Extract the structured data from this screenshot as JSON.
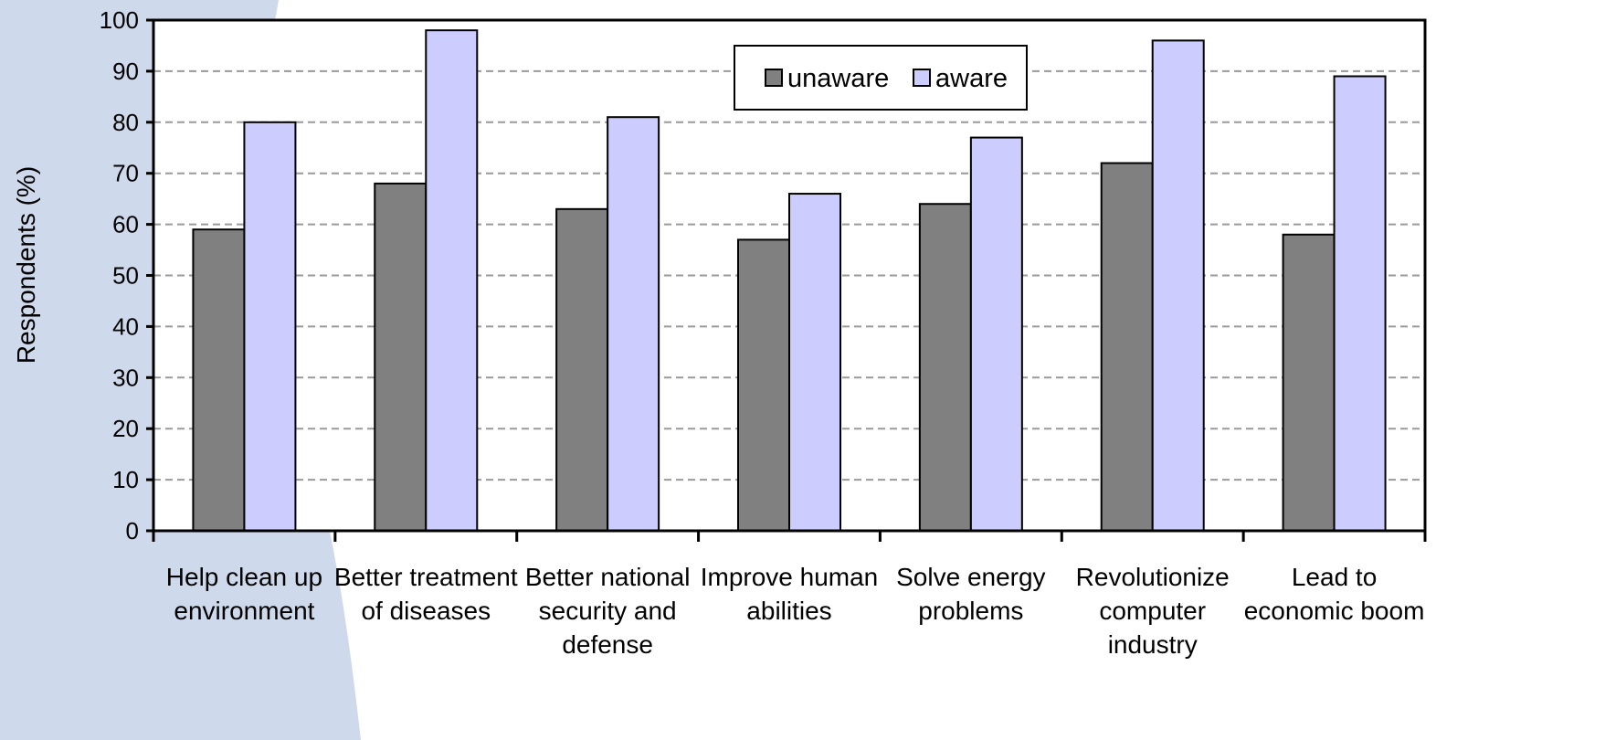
{
  "chart_data": {
    "type": "bar",
    "ylabel": "Respondents (%)",
    "ylim": [
      0,
      100
    ],
    "yticks": [
      0,
      10,
      20,
      30,
      40,
      50,
      60,
      70,
      80,
      90,
      100
    ],
    "grid": true,
    "legend_position": "top-center",
    "categories": [
      [
        "Help clean up",
        "environment"
      ],
      [
        "Better treatment",
        "of diseases"
      ],
      [
        "Better national",
        "security and",
        "defense"
      ],
      [
        "Improve human",
        "abilities"
      ],
      [
        "Solve energy",
        "problems"
      ],
      [
        "Revolutionize",
        "computer",
        "industry"
      ],
      [
        "Lead to",
        "economic boom"
      ]
    ],
    "series": [
      {
        "name": "unaware",
        "color": "#808080",
        "values": [
          59,
          68,
          63,
          57,
          64,
          72,
          58
        ]
      },
      {
        "name": "aware",
        "color": "#ccccff",
        "values": [
          80,
          98,
          81,
          66,
          77,
          96,
          89
        ]
      }
    ]
  },
  "background": {
    "accent_color": "#cfd9ec"
  }
}
